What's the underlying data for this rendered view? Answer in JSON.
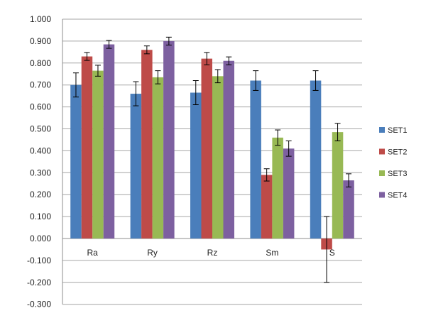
{
  "chart_data": {
    "type": "bar",
    "title": "",
    "xlabel": "",
    "ylabel": "",
    "categories": [
      "Ra",
      "Ry",
      "Rz",
      "Sm",
      "S"
    ],
    "ylim": [
      -0.3,
      1.0
    ],
    "yticks": [
      "1.000",
      "0.900",
      "0.800",
      "0.700",
      "0.600",
      "0.500",
      "0.400",
      "0.300",
      "0.200",
      "0.100",
      "0.000",
      "-0.100",
      "-0.200",
      "-0.300"
    ],
    "ytick_values": [
      1.0,
      0.9,
      0.8,
      0.7,
      0.6,
      0.5,
      0.4,
      0.3,
      0.2,
      0.1,
      0.0,
      -0.1,
      -0.2,
      -0.3
    ],
    "grid": true,
    "legend_position": "right",
    "error_bars": true,
    "series": [
      {
        "name": "SET1",
        "color": "#4a7ebb",
        "values": [
          0.7,
          0.66,
          0.665,
          0.72,
          0.72
        ],
        "errors": [
          0.055,
          0.055,
          0.055,
          0.045,
          0.045
        ]
      },
      {
        "name": "SET2",
        "color": "#be4b48",
        "values": [
          0.83,
          0.86,
          0.82,
          0.29,
          -0.05
        ],
        "errors": [
          0.018,
          0.018,
          0.028,
          0.028,
          0.15
        ]
      },
      {
        "name": "SET3",
        "color": "#98b954",
        "values": [
          0.765,
          0.735,
          0.74,
          0.46,
          0.485
        ],
        "errors": [
          0.025,
          0.03,
          0.03,
          0.035,
          0.04
        ]
      },
      {
        "name": "SET4",
        "color": "#7d60a0",
        "values": [
          0.885,
          0.9,
          0.81,
          0.41,
          0.265
        ],
        "errors": [
          0.018,
          0.018,
          0.018,
          0.035,
          0.03
        ]
      }
    ]
  }
}
